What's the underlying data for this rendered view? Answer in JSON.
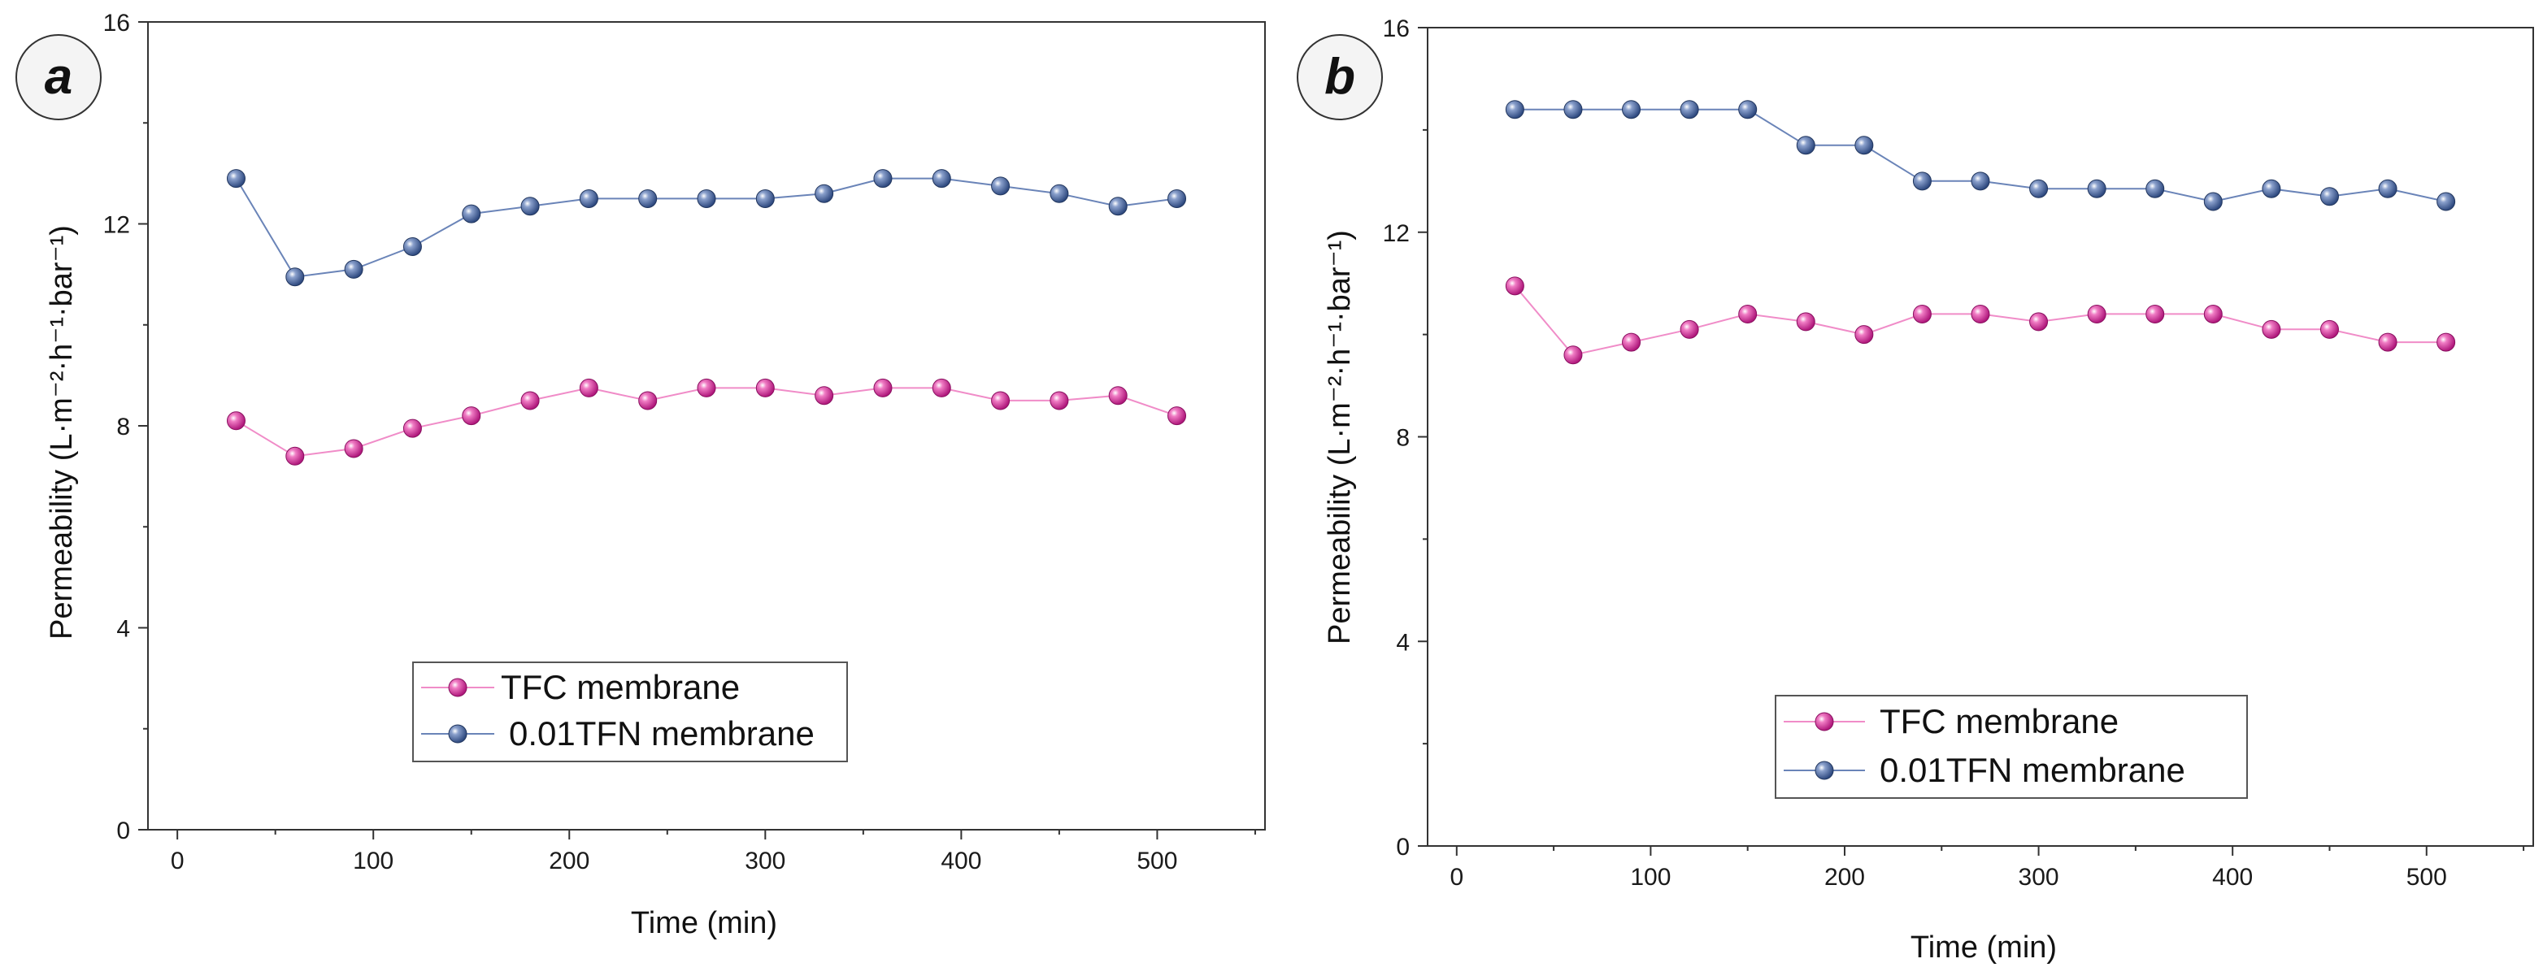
{
  "chart_data": [
    {
      "type": "line",
      "panel_label": "a",
      "xlabel": "Time (min)",
      "ylabel": "Permeability (L·m⁻²·h⁻¹·bar⁻¹)",
      "xlim": [
        -15,
        555
      ],
      "ylim": [
        0,
        16
      ],
      "xticks": [
        0,
        100,
        200,
        300,
        400,
        500
      ],
      "yticks": [
        0,
        4,
        8,
        12,
        16
      ],
      "legend_position": "lower-center",
      "x": [
        30,
        60,
        90,
        120,
        150,
        180,
        210,
        240,
        270,
        300,
        330,
        360,
        390,
        420,
        450,
        480,
        510
      ],
      "series": [
        {
          "name": "TFC membrane",
          "color": "#d6289a",
          "line_color": "#f08cc8",
          "values": [
            8.1,
            7.4,
            7.55,
            7.95,
            8.2,
            8.5,
            8.75,
            8.5,
            8.75,
            8.75,
            8.6,
            8.75,
            8.75,
            8.5,
            8.5,
            8.6,
            8.2
          ]
        },
        {
          "name": "0.01TFN membrane",
          "color": "#4f6a9e",
          "line_color": "#6a84b8",
          "values": [
            12.9,
            10.95,
            11.1,
            11.55,
            12.2,
            12.35,
            12.5,
            12.5,
            12.5,
            12.5,
            12.6,
            12.9,
            12.9,
            12.75,
            12.6,
            12.35,
            12.5
          ]
        }
      ]
    },
    {
      "type": "line",
      "panel_label": "b",
      "xlabel": "Time (min)",
      "ylabel": "Permeability (L·m⁻²·h⁻¹·bar⁻¹)",
      "xlim": [
        -15,
        555
      ],
      "ylim": [
        0,
        16
      ],
      "xticks": [
        0,
        100,
        200,
        300,
        400,
        500
      ],
      "yticks": [
        0,
        4,
        8,
        12,
        16
      ],
      "legend_position": "lower-center",
      "x": [
        30,
        60,
        90,
        120,
        150,
        180,
        210,
        240,
        270,
        300,
        330,
        360,
        390,
        420,
        450,
        480,
        510
      ],
      "series": [
        {
          "name": "TFC membrane",
          "color": "#d6289a",
          "line_color": "#f08cc8",
          "values": [
            10.95,
            9.6,
            9.85,
            10.1,
            10.4,
            10.25,
            10.0,
            10.4,
            10.4,
            10.25,
            10.4,
            10.4,
            10.4,
            10.1,
            10.1,
            9.85,
            9.85
          ]
        },
        {
          "name": "0.01TFN membrane",
          "color": "#4f6a9e",
          "line_color": "#6a84b8",
          "values": [
            14.4,
            14.4,
            14.4,
            14.4,
            14.4,
            13.7,
            13.7,
            13.0,
            13.0,
            12.85,
            12.85,
            12.85,
            12.6,
            12.85,
            12.7,
            12.85,
            12.6
          ]
        }
      ]
    }
  ]
}
